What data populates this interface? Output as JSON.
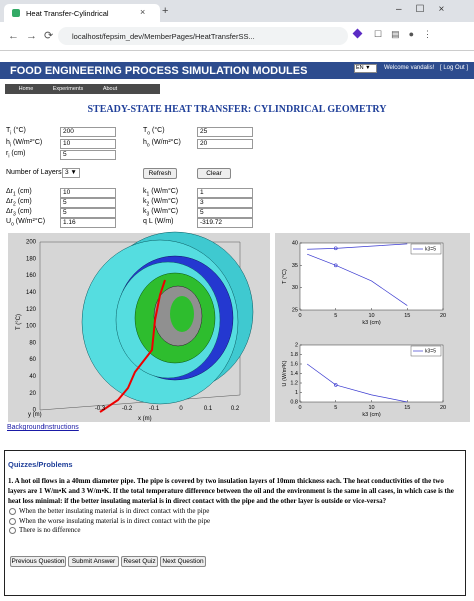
{
  "browser": {
    "tab_title": "Heat Transfer-Cylindrical",
    "url": "localhost/fepsim_dev/MemberPages/HeatTransferSS..."
  },
  "header": {
    "title": "FOOD ENGINEERING PROCESS SIMULATION MODULES",
    "language": "EN",
    "welcome": "Welcome vandalis!",
    "logout": "[ Log Out ]"
  },
  "nav": [
    "Home",
    "Experiments",
    "About"
  ],
  "page_title": "STEADY-STATE HEAT TRANSFER: CYLINDRICAL GEOMETRY",
  "inputs_top": [
    [
      {
        "sym": "T",
        "sub": "i",
        "unit": "(°C)",
        "value": 200
      },
      {
        "sym": "T",
        "sub": "o",
        "unit": "(°C)",
        "value": 25
      }
    ],
    [
      {
        "sym": "h",
        "sub": "i",
        "unit": "(W/m²°C)",
        "value": 10
      },
      {
        "sym": "h",
        "sub": "o",
        "unit": "(W/m²°C)",
        "value": 20
      }
    ],
    [
      {
        "sym": "r",
        "sub": "i",
        "unit": "(cm)",
        "value": 5
      }
    ]
  ],
  "layers": {
    "label": "Number of Layers",
    "value": 3,
    "buttons": [
      "Refresh",
      "Clear"
    ]
  },
  "inputs_layers": [
    [
      {
        "sym": "Δr",
        "sub": "1",
        "unit": "(cm)",
        "value": 10
      },
      {
        "sym": "k",
        "sub": "1",
        "unit": "(W/m°C)",
        "value": 1
      }
    ],
    [
      {
        "sym": "Δr",
        "sub": "2",
        "unit": "(cm)",
        "value": 5
      },
      {
        "sym": "k",
        "sub": "2",
        "unit": "(W/m°C)",
        "value": 3
      }
    ],
    [
      {
        "sym": "Δr",
        "sub": "3",
        "unit": "(cm)",
        "value": 5
      },
      {
        "sym": "k",
        "sub": "3",
        "unit": "(W/m°C)",
        "value": 5
      }
    ],
    [
      {
        "sym": "U",
        "sub": "o",
        "unit": "(W/m²°C)",
        "value": 1.16
      },
      {
        "sym": "q L",
        "unit": "(W/m)",
        "value": -319.72
      }
    ]
  ],
  "plot3d": {
    "zlabel": "T (°C)",
    "zticks": [
      0,
      20,
      40,
      60,
      80,
      100,
      120,
      140,
      160,
      180,
      200
    ],
    "ylabel": "y (m)",
    "xlabel": "x (m)",
    "xticks": [
      -0.3,
      -0.2,
      -0.1,
      0,
      0.1,
      0.2
    ]
  },
  "charts": [
    {
      "type": "line",
      "ylabel": "T (°C)",
      "xlabel": "k3 (cm)",
      "xlim": [
        0,
        20
      ],
      "xticks": [
        0,
        5,
        10,
        15,
        20
      ],
      "ylim": [
        25,
        40
      ],
      "yticks": [
        25,
        30,
        35,
        40
      ],
      "x": [
        1,
        5,
        10,
        15
      ],
      "series": [
        {
          "name": "k3=5",
          "color": "#3a3ad0",
          "values": [
            38.6,
            38.8,
            39.3,
            39.8
          ]
        },
        {
          "color": "#3a3ad0",
          "values": [
            37.5,
            35,
            31.5,
            26
          ]
        }
      ]
    },
    {
      "type": "line",
      "ylabel": "U (W/m²K)",
      "xlabel": "k3 (cm)",
      "xlim": [
        0,
        20
      ],
      "xticks": [
        0,
        5,
        10,
        15,
        20
      ],
      "ylim": [
        0.8,
        2
      ],
      "yticks": [
        0.8,
        1,
        1.2,
        1.4,
        1.6,
        1.8,
        2
      ],
      "x": [
        1,
        5,
        10,
        15
      ],
      "series": [
        {
          "name": "k3=5",
          "color": "#3a3ad0",
          "values": [
            1.6,
            1.16,
            0.95,
            0.8
          ]
        }
      ]
    }
  ],
  "links": [
    "Background",
    "Instructions"
  ],
  "quiz": {
    "title": "Quizzes/Problems",
    "question": "1. A hot oil flows in a 40mm diameter pipe. The pipe is covered by two insulation layers of 10mm thickness each. The heat conductivities of the two layers are 1 W/m•K and 3 W/m•K. If the total temperature difference between the oil and the environment is the same in all cases, in which case is the heat loss minimal: if the better insulating material is in direct contact with the pipe and the other layer is outside or vice-versa?",
    "options": [
      "When the better insulating material is in direct contact with the pipe",
      "When the worse insulating material is in direct contact with the pipe",
      "There is no difference"
    ],
    "buttons": [
      "Previous Question",
      "Submit Answer",
      "Reset Quiz",
      "Next Question"
    ]
  }
}
